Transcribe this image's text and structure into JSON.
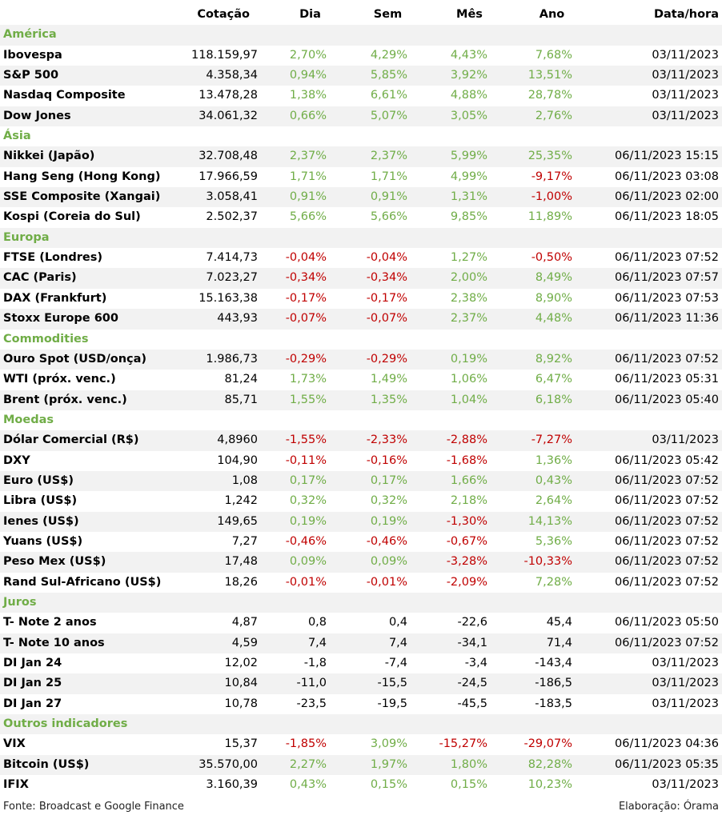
{
  "colors": {
    "positive": "#70ad47",
    "negative": "#c00000",
    "neutral": "#000000",
    "section": "#70ad47",
    "shade": "#f2f2f2"
  },
  "headers": {
    "cotacao": "Cotação",
    "dia": "Dia",
    "sem": "Sem",
    "mes": "Mês",
    "ano": "Ano",
    "datahora": "Data/hora"
  },
  "sections": [
    {
      "title": "América",
      "rows": [
        {
          "name": "Ibovespa",
          "cot": "118.159,97",
          "dia": "2,70%",
          "sem": "4,29%",
          "mes": "4,43%",
          "ano": "7,68%",
          "dt": "03/11/2023"
        },
        {
          "name": "S&P 500",
          "cot": "4.358,34",
          "dia": "0,94%",
          "sem": "5,85%",
          "mes": "3,92%",
          "ano": "13,51%",
          "dt": "03/11/2023"
        },
        {
          "name": "Nasdaq Composite",
          "cot": "13.478,28",
          "dia": "1,38%",
          "sem": "6,61%",
          "mes": "4,88%",
          "ano": "28,78%",
          "dt": "03/11/2023"
        },
        {
          "name": "Dow Jones",
          "cot": "34.061,32",
          "dia": "0,66%",
          "sem": "5,07%",
          "mes": "3,05%",
          "ano": "2,76%",
          "dt": "03/11/2023"
        }
      ]
    },
    {
      "title": "Ásia",
      "rows": [
        {
          "name": "Nikkei (Japão)",
          "cot": "32.708,48",
          "dia": "2,37%",
          "sem": "2,37%",
          "mes": "5,99%",
          "ano": "25,35%",
          "dt": "06/11/2023 15:15"
        },
        {
          "name": "Hang Seng (Hong Kong)",
          "cot": "17.966,59",
          "dia": "1,71%",
          "sem": "1,71%",
          "mes": "4,99%",
          "ano": "-9,17%",
          "dt": "06/11/2023 03:08"
        },
        {
          "name": "SSE Composite (Xangai)",
          "cot": "3.058,41",
          "dia": "0,91%",
          "sem": "0,91%",
          "mes": "1,31%",
          "ano": "-1,00%",
          "dt": "06/11/2023 02:00"
        },
        {
          "name": "Kospi (Coreia do Sul)",
          "cot": "2.502,37",
          "dia": "5,66%",
          "sem": "5,66%",
          "mes": "9,85%",
          "ano": "11,89%",
          "dt": "06/11/2023 18:05"
        }
      ]
    },
    {
      "title": "Europa",
      "rows": [
        {
          "name": "FTSE (Londres)",
          "cot": "7.414,73",
          "dia": "-0,04%",
          "sem": "-0,04%",
          "mes": "1,27%",
          "ano": "-0,50%",
          "dt": "06/11/2023 07:52"
        },
        {
          "name": "CAC (Paris)",
          "cot": "7.023,27",
          "dia": "-0,34%",
          "sem": "-0,34%",
          "mes": "2,00%",
          "ano": "8,49%",
          "dt": "06/11/2023 07:57"
        },
        {
          "name": "DAX (Frankfurt)",
          "cot": "15.163,38",
          "dia": "-0,17%",
          "sem": "-0,17%",
          "mes": "2,38%",
          "ano": "8,90%",
          "dt": "06/11/2023 07:53"
        },
        {
          "name": "Stoxx Europe 600",
          "cot": "443,93",
          "dia": "-0,07%",
          "sem": "-0,07%",
          "mes": "2,37%",
          "ano": "4,48%",
          "dt": "06/11/2023 11:36"
        }
      ]
    },
    {
      "title": "Commodities",
      "rows": [
        {
          "name": "Ouro Spot (USD/onça)",
          "cot": "1.986,73",
          "dia": "-0,29%",
          "sem": "-0,29%",
          "mes": "0,19%",
          "ano": "8,92%",
          "dt": "06/11/2023 07:52"
        },
        {
          "name": "WTI (próx. venc.)",
          "cot": "81,24",
          "dia": "1,73%",
          "sem": "1,49%",
          "mes": "1,06%",
          "ano": "6,47%",
          "dt": "06/11/2023 05:31"
        },
        {
          "name": "Brent (próx. venc.)",
          "cot": "85,71",
          "dia": "1,55%",
          "sem": "1,35%",
          "mes": "1,04%",
          "ano": "6,18%",
          "dt": "06/11/2023 05:40"
        }
      ]
    },
    {
      "title": "Moedas",
      "rows": [
        {
          "name": "Dólar Comercial (R$)",
          "cot": "4,8960",
          "dia": "-1,55%",
          "sem": "-2,33%",
          "mes": "-2,88%",
          "ano": "-7,27%",
          "dt": "03/11/2023"
        },
        {
          "name": "DXY",
          "cot": "104,90",
          "dia": "-0,11%",
          "sem": "-0,16%",
          "mes": "-1,68%",
          "ano": "1,36%",
          "dt": "06/11/2023 05:42"
        },
        {
          "name": "Euro (US$)",
          "cot": "1,08",
          "dia": "0,17%",
          "sem": "0,17%",
          "mes": "1,66%",
          "ano": "0,43%",
          "dt": "06/11/2023 07:52"
        },
        {
          "name": "Libra (US$)",
          "cot": "1,242",
          "dia": "0,32%",
          "sem": "0,32%",
          "mes": "2,18%",
          "ano": "2,64%",
          "dt": "06/11/2023 07:52"
        },
        {
          "name": "Ienes (US$)",
          "cot": "149,65",
          "dia": "0,19%",
          "sem": "0,19%",
          "mes": "-1,30%",
          "ano": "14,13%",
          "dt": "06/11/2023 07:52"
        },
        {
          "name": "Yuans (US$)",
          "cot": "7,27",
          "dia": "-0,46%",
          "sem": "-0,46%",
          "mes": "-0,67%",
          "ano": "5,36%",
          "dt": "06/11/2023 07:52"
        },
        {
          "name": "Peso Mex (US$)",
          "cot": "17,48",
          "dia": "0,09%",
          "sem": "0,09%",
          "mes": "-3,28%",
          "ano": "-10,33%",
          "dt": "06/11/2023 07:52"
        },
        {
          "name": "Rand Sul-Africano (US$)",
          "cot": "18,26",
          "dia": "-0,01%",
          "sem": "-0,01%",
          "mes": "-2,09%",
          "ano": "7,28%",
          "dt": "06/11/2023 07:52"
        }
      ]
    },
    {
      "title": "Juros",
      "rows": [
        {
          "name": "T- Note 2 anos",
          "cot": "4,87",
          "dia": "0,8",
          "sem": "0,4",
          "mes": "-22,6",
          "ano": "45,4",
          "dt": "06/11/2023 05:50"
        },
        {
          "name": "T- Note 10 anos",
          "cot": "4,59",
          "dia": "7,4",
          "sem": "7,4",
          "mes": "-34,1",
          "ano": "71,4",
          "dt": "06/11/2023 07:52"
        },
        {
          "name": "DI Jan 24",
          "cot": "12,02",
          "dia": "-1,8",
          "sem": "-7,4",
          "mes": "-3,4",
          "ano": "-143,4",
          "dt": "03/11/2023"
        },
        {
          "name": "DI Jan 25",
          "cot": "10,84",
          "dia": "-11,0",
          "sem": "-15,5",
          "mes": "-24,5",
          "ano": "-186,5",
          "dt": "03/11/2023"
        },
        {
          "name": "DI Jan 27",
          "cot": "10,78",
          "dia": "-23,5",
          "sem": "-19,5",
          "mes": "-45,5",
          "ano": "-183,5",
          "dt": "03/11/2023"
        }
      ]
    },
    {
      "title": "Outros indicadores",
      "rows": [
        {
          "name": "VIX",
          "cot": "15,37",
          "dia": "-1,85%",
          "sem": "3,09%",
          "mes": "-15,27%",
          "ano": "-29,07%",
          "dt": "06/11/2023 04:36"
        },
        {
          "name": "Bitcoin (US$)",
          "cot": "35.570,00",
          "dia": "2,27%",
          "sem": "1,97%",
          "mes": "1,80%",
          "ano": "82,28%",
          "dt": "06/11/2023 05:35"
        },
        {
          "name": "IFIX",
          "cot": "3.160,39",
          "dia": "0,43%",
          "sem": "0,15%",
          "mes": "0,15%",
          "ano": "10,23%",
          "dt": "03/11/2023"
        }
      ]
    }
  ],
  "footer": {
    "source": "Fonte: Broadcast e Google Finance",
    "credit": "Elaboração: Órama"
  }
}
